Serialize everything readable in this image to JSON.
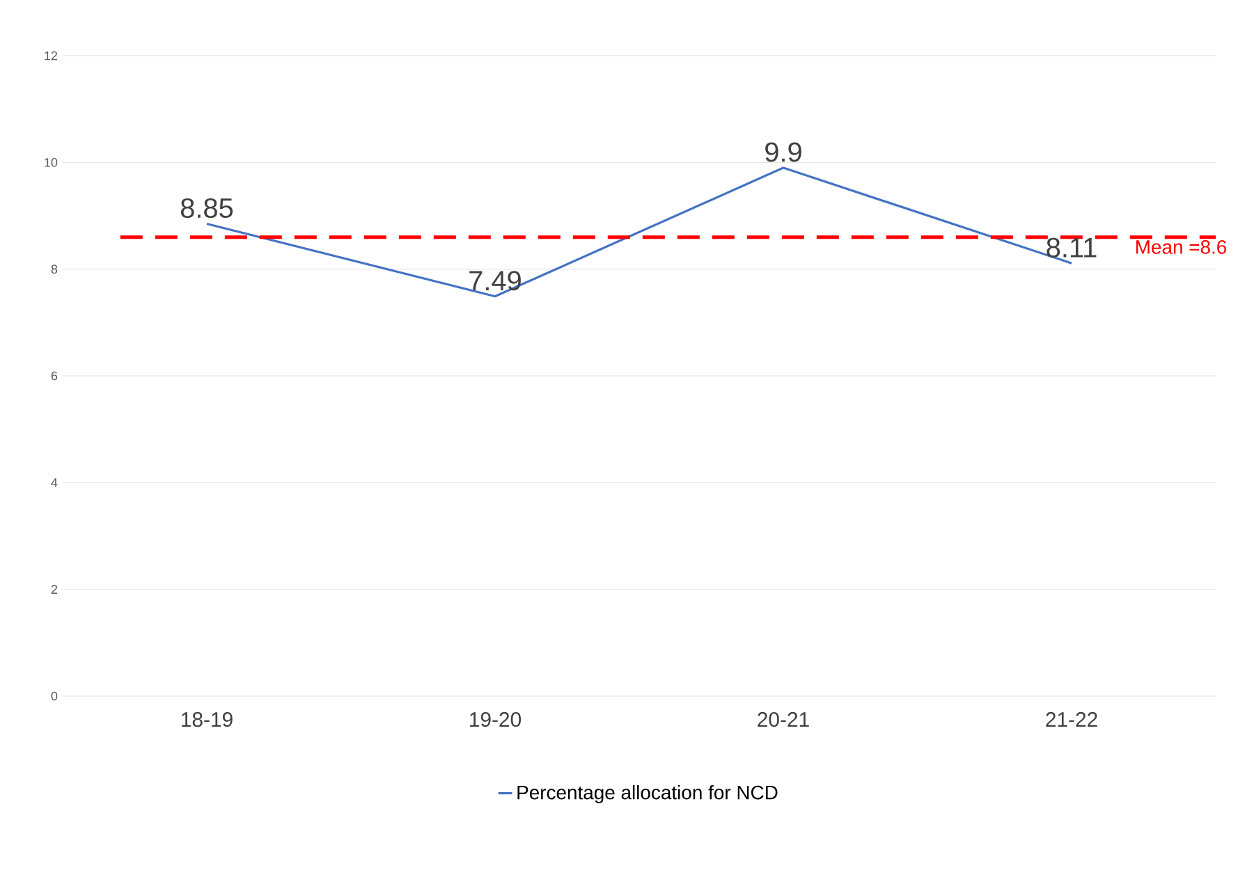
{
  "chart_data": {
    "type": "line",
    "categories": [
      "18-19",
      "19-20",
      "20-21",
      "21-22"
    ],
    "series": [
      {
        "name": "Percentage allocation for NCD",
        "color": "#4472c4",
        "values": [
          8.85,
          7.49,
          9.9,
          8.11
        ]
      }
    ],
    "ylim": [
      0,
      12
    ],
    "yticks": [
      0,
      2,
      4,
      6,
      8,
      10,
      12
    ],
    "grid": "y",
    "legend": "bottom",
    "data_labels": true,
    "marker": "none",
    "line_style": "solid",
    "ref_lines": [
      {
        "axis": "y",
        "value": 8.6,
        "label": "Mean =8.6",
        "color": "#ff0000",
        "line_style": "dashed"
      }
    ]
  }
}
